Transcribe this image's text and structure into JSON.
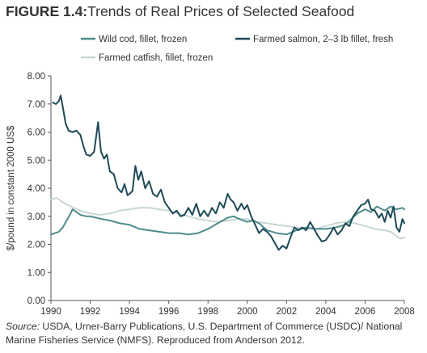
{
  "figure": {
    "label": "FIGURE 1.4:",
    "title": "Trends of Real Prices of Selected Seafood",
    "source_label": "Source:",
    "source_text": " USDA, Urner-Barry Publications, U.S. Department of Commerce (USDC)/ National Marine Fisheries Service (NMFS). Reproduced from Anderson 2012."
  },
  "chart_data": {
    "type": "line",
    "title": "Trends of Real Prices of Selected Seafood",
    "xlabel": "",
    "ylabel": "$/pound in constant 2000 US$",
    "xlim": [
      1990,
      2008
    ],
    "ylim": [
      0,
      8
    ],
    "x_ticks": [
      "1990",
      "1992",
      "1994",
      "1996",
      "1998",
      "2000",
      "2002",
      "2004",
      "2006",
      "2008"
    ],
    "y_ticks": [
      "0.00",
      "1.00",
      "2.00",
      "3.00",
      "4.00",
      "5.00",
      "6.00",
      "7.00",
      "8.00"
    ],
    "grid": false,
    "legend_position": "top",
    "series": [
      {
        "name": "Wild cod, fillet, frozen",
        "color": "#4f8c8c",
        "width": 2,
        "points": [
          [
            1990.0,
            2.35
          ],
          [
            1990.2,
            2.4
          ],
          [
            1990.4,
            2.45
          ],
          [
            1990.6,
            2.6
          ],
          [
            1990.8,
            2.85
          ],
          [
            1991.0,
            3.1
          ],
          [
            1991.1,
            3.25
          ],
          [
            1991.3,
            3.15
          ],
          [
            1991.5,
            3.05
          ],
          [
            1991.8,
            3.0
          ],
          [
            1992.0,
            3.0
          ],
          [
            1992.3,
            2.95
          ],
          [
            1992.6,
            2.9
          ],
          [
            1993.0,
            2.85
          ],
          [
            1993.5,
            2.75
          ],
          [
            1994.0,
            2.7
          ],
          [
            1994.5,
            2.55
          ],
          [
            1995.0,
            2.5
          ],
          [
            1995.5,
            2.45
          ],
          [
            1996.0,
            2.4
          ],
          [
            1996.5,
            2.4
          ],
          [
            1997.0,
            2.35
          ],
          [
            1997.5,
            2.4
          ],
          [
            1998.0,
            2.55
          ],
          [
            1998.5,
            2.75
          ],
          [
            1999.0,
            2.95
          ],
          [
            1999.3,
            3.0
          ],
          [
            1999.6,
            2.9
          ],
          [
            2000.0,
            2.8
          ],
          [
            2000.3,
            2.85
          ],
          [
            2000.6,
            2.75
          ],
          [
            2001.0,
            2.5
          ],
          [
            2001.5,
            2.4
          ],
          [
            2002.0,
            2.35
          ],
          [
            2002.5,
            2.5
          ],
          [
            2003.0,
            2.6
          ],
          [
            2003.5,
            2.55
          ],
          [
            2004.0,
            2.55
          ],
          [
            2004.5,
            2.6
          ],
          [
            2005.0,
            2.7
          ],
          [
            2005.3,
            2.9
          ],
          [
            2005.6,
            3.1
          ],
          [
            2006.0,
            3.25
          ],
          [
            2006.3,
            3.15
          ],
          [
            2006.6,
            3.35
          ],
          [
            2007.0,
            3.2
          ],
          [
            2007.3,
            3.35
          ],
          [
            2007.6,
            3.25
          ],
          [
            2007.9,
            3.3
          ],
          [
            2008.0,
            3.25
          ]
        ]
      },
      {
        "name": "Farmed salmon, 2–3 lb fillet, fresh",
        "color": "#1e4a57",
        "width": 2,
        "points": [
          [
            1990.1,
            7.05
          ],
          [
            1990.25,
            7.0
          ],
          [
            1990.4,
            7.1
          ],
          [
            1990.5,
            7.3
          ],
          [
            1990.6,
            6.9
          ],
          [
            1990.75,
            6.3
          ],
          [
            1990.9,
            6.05
          ],
          [
            1991.1,
            6.0
          ],
          [
            1991.3,
            6.05
          ],
          [
            1991.5,
            5.9
          ],
          [
            1991.65,
            5.5
          ],
          [
            1991.8,
            5.2
          ],
          [
            1992.0,
            5.15
          ],
          [
            1992.2,
            5.3
          ],
          [
            1992.4,
            6.35
          ],
          [
            1992.55,
            5.3
          ],
          [
            1992.7,
            5.05
          ],
          [
            1992.85,
            5.2
          ],
          [
            1993.0,
            4.6
          ],
          [
            1993.2,
            4.5
          ],
          [
            1993.4,
            4.0
          ],
          [
            1993.6,
            3.85
          ],
          [
            1993.75,
            4.15
          ],
          [
            1993.9,
            3.75
          ],
          [
            1994.0,
            3.8
          ],
          [
            1994.15,
            3.9
          ],
          [
            1994.3,
            4.8
          ],
          [
            1994.45,
            4.3
          ],
          [
            1994.6,
            4.6
          ],
          [
            1994.8,
            4.0
          ],
          [
            1995.0,
            4.25
          ],
          [
            1995.2,
            3.8
          ],
          [
            1995.4,
            3.7
          ],
          [
            1995.6,
            3.95
          ],
          [
            1995.8,
            3.5
          ],
          [
            1996.0,
            3.3
          ],
          [
            1996.2,
            3.1
          ],
          [
            1996.4,
            3.2
          ],
          [
            1996.6,
            3.0
          ],
          [
            1996.8,
            3.05
          ],
          [
            1997.0,
            3.3
          ],
          [
            1997.2,
            3.05
          ],
          [
            1997.4,
            3.45
          ],
          [
            1997.6,
            3.0
          ],
          [
            1997.8,
            3.2
          ],
          [
            1998.0,
            3.0
          ],
          [
            1998.2,
            3.3
          ],
          [
            1998.4,
            3.1
          ],
          [
            1998.6,
            3.5
          ],
          [
            1998.8,
            3.3
          ],
          [
            1999.0,
            3.8
          ],
          [
            1999.15,
            3.6
          ],
          [
            1999.3,
            3.5
          ],
          [
            1999.5,
            3.2
          ],
          [
            1999.7,
            3.45
          ],
          [
            1999.85,
            3.25
          ],
          [
            2000.0,
            3.4
          ],
          [
            2000.2,
            3.0
          ],
          [
            2000.4,
            2.7
          ],
          [
            2000.6,
            2.4
          ],
          [
            2000.8,
            2.55
          ],
          [
            2001.0,
            2.45
          ],
          [
            2001.2,
            2.3
          ],
          [
            2001.4,
            2.05
          ],
          [
            2001.6,
            1.8
          ],
          [
            2001.8,
            1.95
          ],
          [
            2002.0,
            1.85
          ],
          [
            2002.2,
            2.25
          ],
          [
            2002.4,
            2.6
          ],
          [
            2002.6,
            2.5
          ],
          [
            2002.8,
            2.6
          ],
          [
            2003.0,
            2.5
          ],
          [
            2003.2,
            2.8
          ],
          [
            2003.4,
            2.55
          ],
          [
            2003.6,
            2.3
          ],
          [
            2003.8,
            2.1
          ],
          [
            2004.0,
            2.15
          ],
          [
            2004.2,
            2.35
          ],
          [
            2004.4,
            2.6
          ],
          [
            2004.6,
            2.35
          ],
          [
            2004.8,
            2.5
          ],
          [
            2005.0,
            2.75
          ],
          [
            2005.2,
            2.65
          ],
          [
            2005.4,
            3.0
          ],
          [
            2005.6,
            3.2
          ],
          [
            2005.8,
            3.4
          ],
          [
            2006.0,
            3.45
          ],
          [
            2006.15,
            3.6
          ],
          [
            2006.3,
            3.25
          ],
          [
            2006.5,
            3.2
          ],
          [
            2006.7,
            2.95
          ],
          [
            2006.85,
            3.1
          ],
          [
            2007.0,
            2.8
          ],
          [
            2007.15,
            3.2
          ],
          [
            2007.3,
            2.95
          ],
          [
            2007.45,
            3.35
          ],
          [
            2007.6,
            2.6
          ],
          [
            2007.75,
            2.45
          ],
          [
            2007.9,
            2.9
          ],
          [
            2008.0,
            2.75
          ]
        ]
      },
      {
        "name": "Farmed catfish, fillet, frozen",
        "color": "#c8d6d6",
        "width": 2,
        "points": [
          [
            1990.0,
            3.6
          ],
          [
            1990.3,
            3.65
          ],
          [
            1990.6,
            3.5
          ],
          [
            1991.0,
            3.35
          ],
          [
            1991.5,
            3.2
          ],
          [
            1992.0,
            3.1
          ],
          [
            1992.5,
            3.05
          ],
          [
            1993.0,
            3.1
          ],
          [
            1993.5,
            3.2
          ],
          [
            1994.0,
            3.25
          ],
          [
            1994.5,
            3.3
          ],
          [
            1995.0,
            3.3
          ],
          [
            1995.5,
            3.25
          ],
          [
            1996.0,
            3.2
          ],
          [
            1996.5,
            3.1
          ],
          [
            1997.0,
            3.0
          ],
          [
            1997.5,
            2.9
          ],
          [
            1998.0,
            2.85
          ],
          [
            1998.5,
            2.8
          ],
          [
            1999.0,
            2.85
          ],
          [
            1999.5,
            2.9
          ],
          [
            2000.0,
            2.9
          ],
          [
            2000.5,
            2.8
          ],
          [
            2001.0,
            2.75
          ],
          [
            2001.5,
            2.7
          ],
          [
            2002.0,
            2.65
          ],
          [
            2002.5,
            2.6
          ],
          [
            2003.0,
            2.55
          ],
          [
            2003.5,
            2.55
          ],
          [
            2004.0,
            2.65
          ],
          [
            2004.5,
            2.75
          ],
          [
            2005.0,
            2.8
          ],
          [
            2005.5,
            2.75
          ],
          [
            2006.0,
            2.65
          ],
          [
            2006.5,
            2.55
          ],
          [
            2007.0,
            2.5
          ],
          [
            2007.3,
            2.45
          ],
          [
            2007.6,
            2.3
          ],
          [
            2007.8,
            2.2
          ],
          [
            2008.0,
            2.25
          ]
        ]
      }
    ]
  }
}
